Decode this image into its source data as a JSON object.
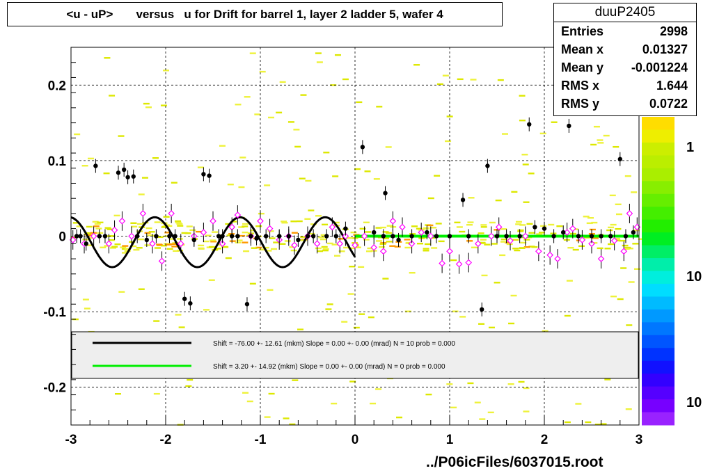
{
  "title": "<u - uP>       versus   u for Drift for barrel 1, layer 2 ladder 5, wafer 4",
  "stats": {
    "name": "duuP2405",
    "rows": [
      {
        "label": "Entries",
        "value": "2998"
      },
      {
        "label": "Mean x",
        "value": "0.01327"
      },
      {
        "label": "Mean y",
        "value": "-0.001224"
      },
      {
        "label": "RMS x",
        "value": "1.644"
      },
      {
        "label": "RMS y",
        "value": "0.0722"
      }
    ]
  },
  "footer": "../P06icFiles/6037015.root",
  "legend": [
    {
      "color": "#000000",
      "text": "Shift =   -76.00 +- 12.61 (mkm) Slope =     0.00 +- 0.00 (mrad)  N = 10 prob = 0.000"
    },
    {
      "color": "#00ee00",
      "text": "Shift =    3.20 +- 14.92 (mkm) Slope =     0.00 +- 0.00 (mrad)  N = 0 prob = 0.000"
    }
  ],
  "palette_labels": [
    "1",
    "10",
    "10"
  ],
  "chart_data": {
    "type": "scatter",
    "xlim": [
      -3,
      3
    ],
    "ylim": [
      -0.25,
      0.25
    ],
    "xticks": [
      "-3",
      "-2",
      "-1",
      "0",
      "1",
      "2",
      "3"
    ],
    "yticks": [
      "0.2",
      "0.1",
      "0",
      "-0.1",
      "-0.2"
    ],
    "grid": true,
    "black_points": [
      [
        -2.94,
        0.0
      ],
      [
        -2.9,
        0.0
      ],
      [
        -2.84,
        -0.01
      ],
      [
        -2.74,
        0.093
      ],
      [
        -2.7,
        0.0
      ],
      [
        -2.64,
        0.0
      ],
      [
        -2.5,
        0.084
      ],
      [
        -2.44,
        0.088
      ],
      [
        -2.4,
        0.078
      ],
      [
        -2.34,
        0.079
      ],
      [
        -2.3,
        0.0
      ],
      [
        -2.2,
        -0.005
      ],
      [
        -2.1,
        0.0
      ],
      [
        -1.96,
        0.0
      ],
      [
        -1.9,
        0.0
      ],
      [
        -1.8,
        -0.083
      ],
      [
        -1.74,
        -0.089
      ],
      [
        -1.7,
        -0.005
      ],
      [
        -1.6,
        0.082
      ],
      [
        -1.54,
        0.08
      ],
      [
        -1.44,
        0.0
      ],
      [
        -1.4,
        0.0
      ],
      [
        -1.3,
        0.0
      ],
      [
        -1.24,
        0.0
      ],
      [
        -1.14,
        -0.09
      ],
      [
        -1.1,
        0.0
      ],
      [
        -1.04,
        -0.003
      ],
      [
        -0.94,
        0.0
      ],
      [
        -0.8,
        0.0
      ],
      [
        -0.7,
        0.0
      ],
      [
        -0.6,
        -0.005
      ],
      [
        -0.5,
        0.0
      ],
      [
        -0.44,
        0.0
      ],
      [
        -0.3,
        0.0
      ],
      [
        -0.2,
        0.0
      ],
      [
        -0.1,
        0.01
      ],
      [
        0.08,
        0.118
      ],
      [
        0.2,
        0.005
      ],
      [
        0.3,
        0.0
      ],
      [
        0.32,
        0.057
      ],
      [
        0.4,
        0.0
      ],
      [
        0.46,
        -0.005
      ],
      [
        0.6,
        0.0
      ],
      [
        0.76,
        0.005
      ],
      [
        0.86,
        0.0
      ],
      [
        1.0,
        0.0
      ],
      [
        1.14,
        0.048
      ],
      [
        1.2,
        0.0
      ],
      [
        1.34,
        -0.097
      ],
      [
        1.4,
        0.093
      ],
      [
        1.5,
        0.0
      ],
      [
        1.6,
        0.0
      ],
      [
        1.74,
        0.0
      ],
      [
        1.84,
        0.148
      ],
      [
        1.9,
        0.012
      ],
      [
        2.0,
        0.01
      ],
      [
        2.1,
        0.0
      ],
      [
        2.2,
        0.005
      ],
      [
        2.26,
        0.146
      ],
      [
        2.36,
        0.0
      ],
      [
        2.5,
        0.0
      ],
      [
        2.6,
        0.0
      ],
      [
        2.7,
        0.0
      ],
      [
        2.8,
        0.102
      ],
      [
        2.86,
        0.0
      ],
      [
        2.94,
        0.005
      ]
    ],
    "magenta_points": [
      [
        -2.98,
        -0.005
      ],
      [
        -2.86,
        -0.01
      ],
      [
        -2.76,
        0.0
      ],
      [
        -2.6,
        -0.01
      ],
      [
        -2.54,
        0.008
      ],
      [
        -2.46,
        0.02
      ],
      [
        -2.36,
        0.0
      ],
      [
        -2.24,
        0.03
      ],
      [
        -2.14,
        -0.01
      ],
      [
        -2.04,
        -0.033
      ],
      [
        -1.94,
        0.03
      ],
      [
        -1.84,
        -0.01
      ],
      [
        -1.7,
        0.0
      ],
      [
        -1.6,
        0.005
      ],
      [
        -1.5,
        0.02
      ],
      [
        -1.4,
        -0.01
      ],
      [
        -1.3,
        0.012
      ],
      [
        -1.24,
        0.028
      ],
      [
        -1.1,
        0.0
      ],
      [
        -1.0,
        0.02
      ],
      [
        -0.9,
        0.01
      ],
      [
        -0.8,
        -0.005
      ],
      [
        -0.7,
        0.0
      ],
      [
        -0.64,
        -0.012
      ],
      [
        -0.5,
        0.0
      ],
      [
        -0.4,
        -0.01
      ],
      [
        -0.24,
        0.012
      ],
      [
        -0.16,
        -0.01
      ],
      [
        -0.1,
        0.0
      ],
      [
        0.0,
        -0.012
      ],
      [
        0.1,
        0.0
      ],
      [
        0.2,
        -0.015
      ],
      [
        0.3,
        -0.02
      ],
      [
        0.4,
        0.02
      ],
      [
        0.5,
        0.012
      ],
      [
        0.6,
        -0.01
      ],
      [
        0.7,
        0.005
      ],
      [
        0.8,
        0.0
      ],
      [
        0.92,
        -0.036
      ],
      [
        1.0,
        -0.02
      ],
      [
        1.1,
        -0.037
      ],
      [
        1.2,
        -0.035
      ],
      [
        1.3,
        -0.01
      ],
      [
        1.44,
        0.0
      ],
      [
        1.52,
        0.012
      ],
      [
        1.64,
        -0.006
      ],
      [
        1.8,
        0.0
      ],
      [
        1.94,
        -0.02
      ],
      [
        2.06,
        -0.025
      ],
      [
        2.14,
        -0.03
      ],
      [
        2.24,
        0.005
      ],
      [
        2.3,
        0.01
      ],
      [
        2.4,
        -0.005
      ],
      [
        2.5,
        -0.01
      ],
      [
        2.6,
        -0.03
      ],
      [
        2.74,
        -0.006
      ],
      [
        2.84,
        -0.02
      ],
      [
        2.9,
        0.03
      ],
      [
        2.98,
        0.012
      ]
    ],
    "black_curve": {
      "amplitude": 0.033,
      "period": 0.9,
      "phase": 0.0,
      "offset": -0.008,
      "x_range": [
        -3,
        0
      ]
    },
    "green_line": {
      "y": 0.0,
      "x_range": [
        0,
        3
      ]
    }
  }
}
